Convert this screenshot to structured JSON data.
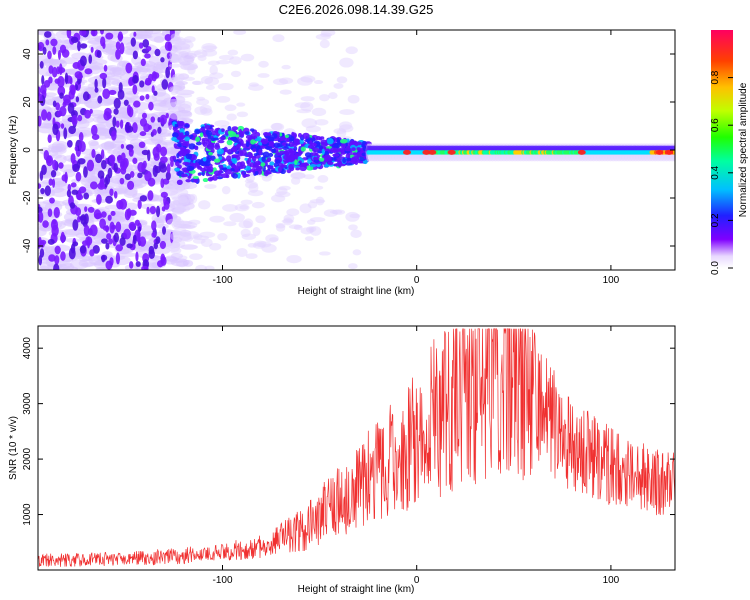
{
  "title": "C2E6.2026.098.14.39.G25",
  "chart_data": [
    {
      "type": "heatmap",
      "name": "spectrogram",
      "xlabel": "Height of straight line (km)",
      "ylabel": "Frequency (Hz)",
      "xlim": [
        -195,
        133
      ],
      "ylim": [
        -50,
        50
      ],
      "xticks": [
        -100,
        0,
        100
      ],
      "yticks": [
        -40,
        -20,
        0,
        20,
        40
      ],
      "colorbar": {
        "label": "Normalized spectral amplitude",
        "range": [
          0,
          1
        ],
        "ticks": [
          0.0,
          0.2,
          0.4,
          0.6,
          0.8
        ]
      },
      "features": {
        "noise_region_x": [
          -195,
          -125
        ],
        "transition_x": [
          -125,
          -25
        ],
        "narrow_signal_x": [
          -25,
          133
        ],
        "signal_center_hz": -1
      }
    },
    {
      "type": "line",
      "name": "snr",
      "xlabel": "Height of straight line (km)",
      "ylabel": "SNR (10 * v/v)",
      "xlim": [
        -195,
        133
      ],
      "ylim": [
        0,
        4400
      ],
      "xticks": [
        -100,
        0,
        100
      ],
      "yticks": [
        1000,
        2000,
        3000,
        4000
      ],
      "color": "#f03030",
      "envelope": {
        "x": [
          -195,
          -150,
          -110,
          -80,
          -60,
          -40,
          -20,
          -5,
          10,
          25,
          40,
          48,
          55,
          65,
          75,
          90,
          110,
          133
        ],
        "y": [
          170,
          200,
          280,
          420,
          700,
          1250,
          1750,
          2250,
          2750,
          3250,
          3600,
          3700,
          3500,
          3000,
          2350,
          2050,
          1700,
          1550
        ]
      }
    }
  ]
}
